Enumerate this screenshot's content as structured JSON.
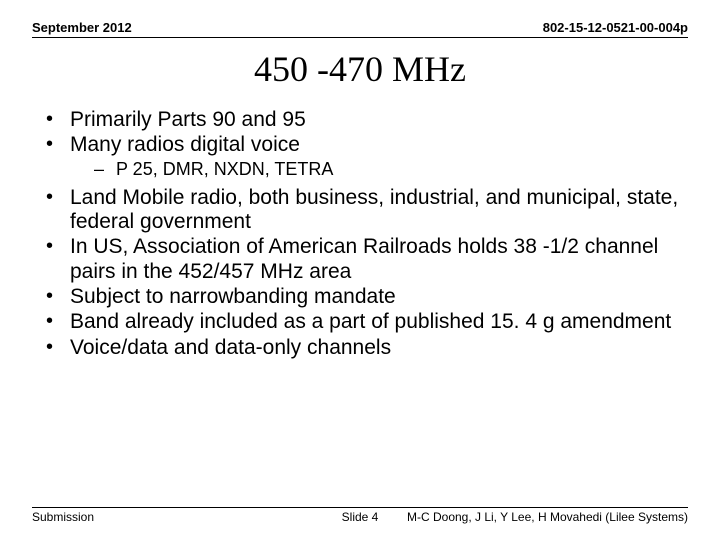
{
  "header": {
    "date": "September 2012",
    "docnum": "802-15-12-0521-00-004p"
  },
  "title": "450 -470 MHz",
  "bullets": {
    "b1": "Primarily Parts 90 and 95",
    "b2": "Many radios digital voice",
    "b2a": "P 25, DMR, NXDN, TETRA",
    "b3": "Land Mobile radio, both business, industrial, and municipal, state, federal government",
    "b4": "In US, Association of American Railroads holds 38 -1/2 channel pairs in the 452/457 MHz area",
    "b5": "Subject to narrowbanding mandate",
    "b6": "Band already included as a part of published 15. 4 g amendment",
    "b7": "Voice/data and data-only channels"
  },
  "footer": {
    "left": "Submission",
    "mid": "Slide 4",
    "right": "M-C Doong, J Li, Y Lee, H Movahedi (Lilee Systems)"
  }
}
